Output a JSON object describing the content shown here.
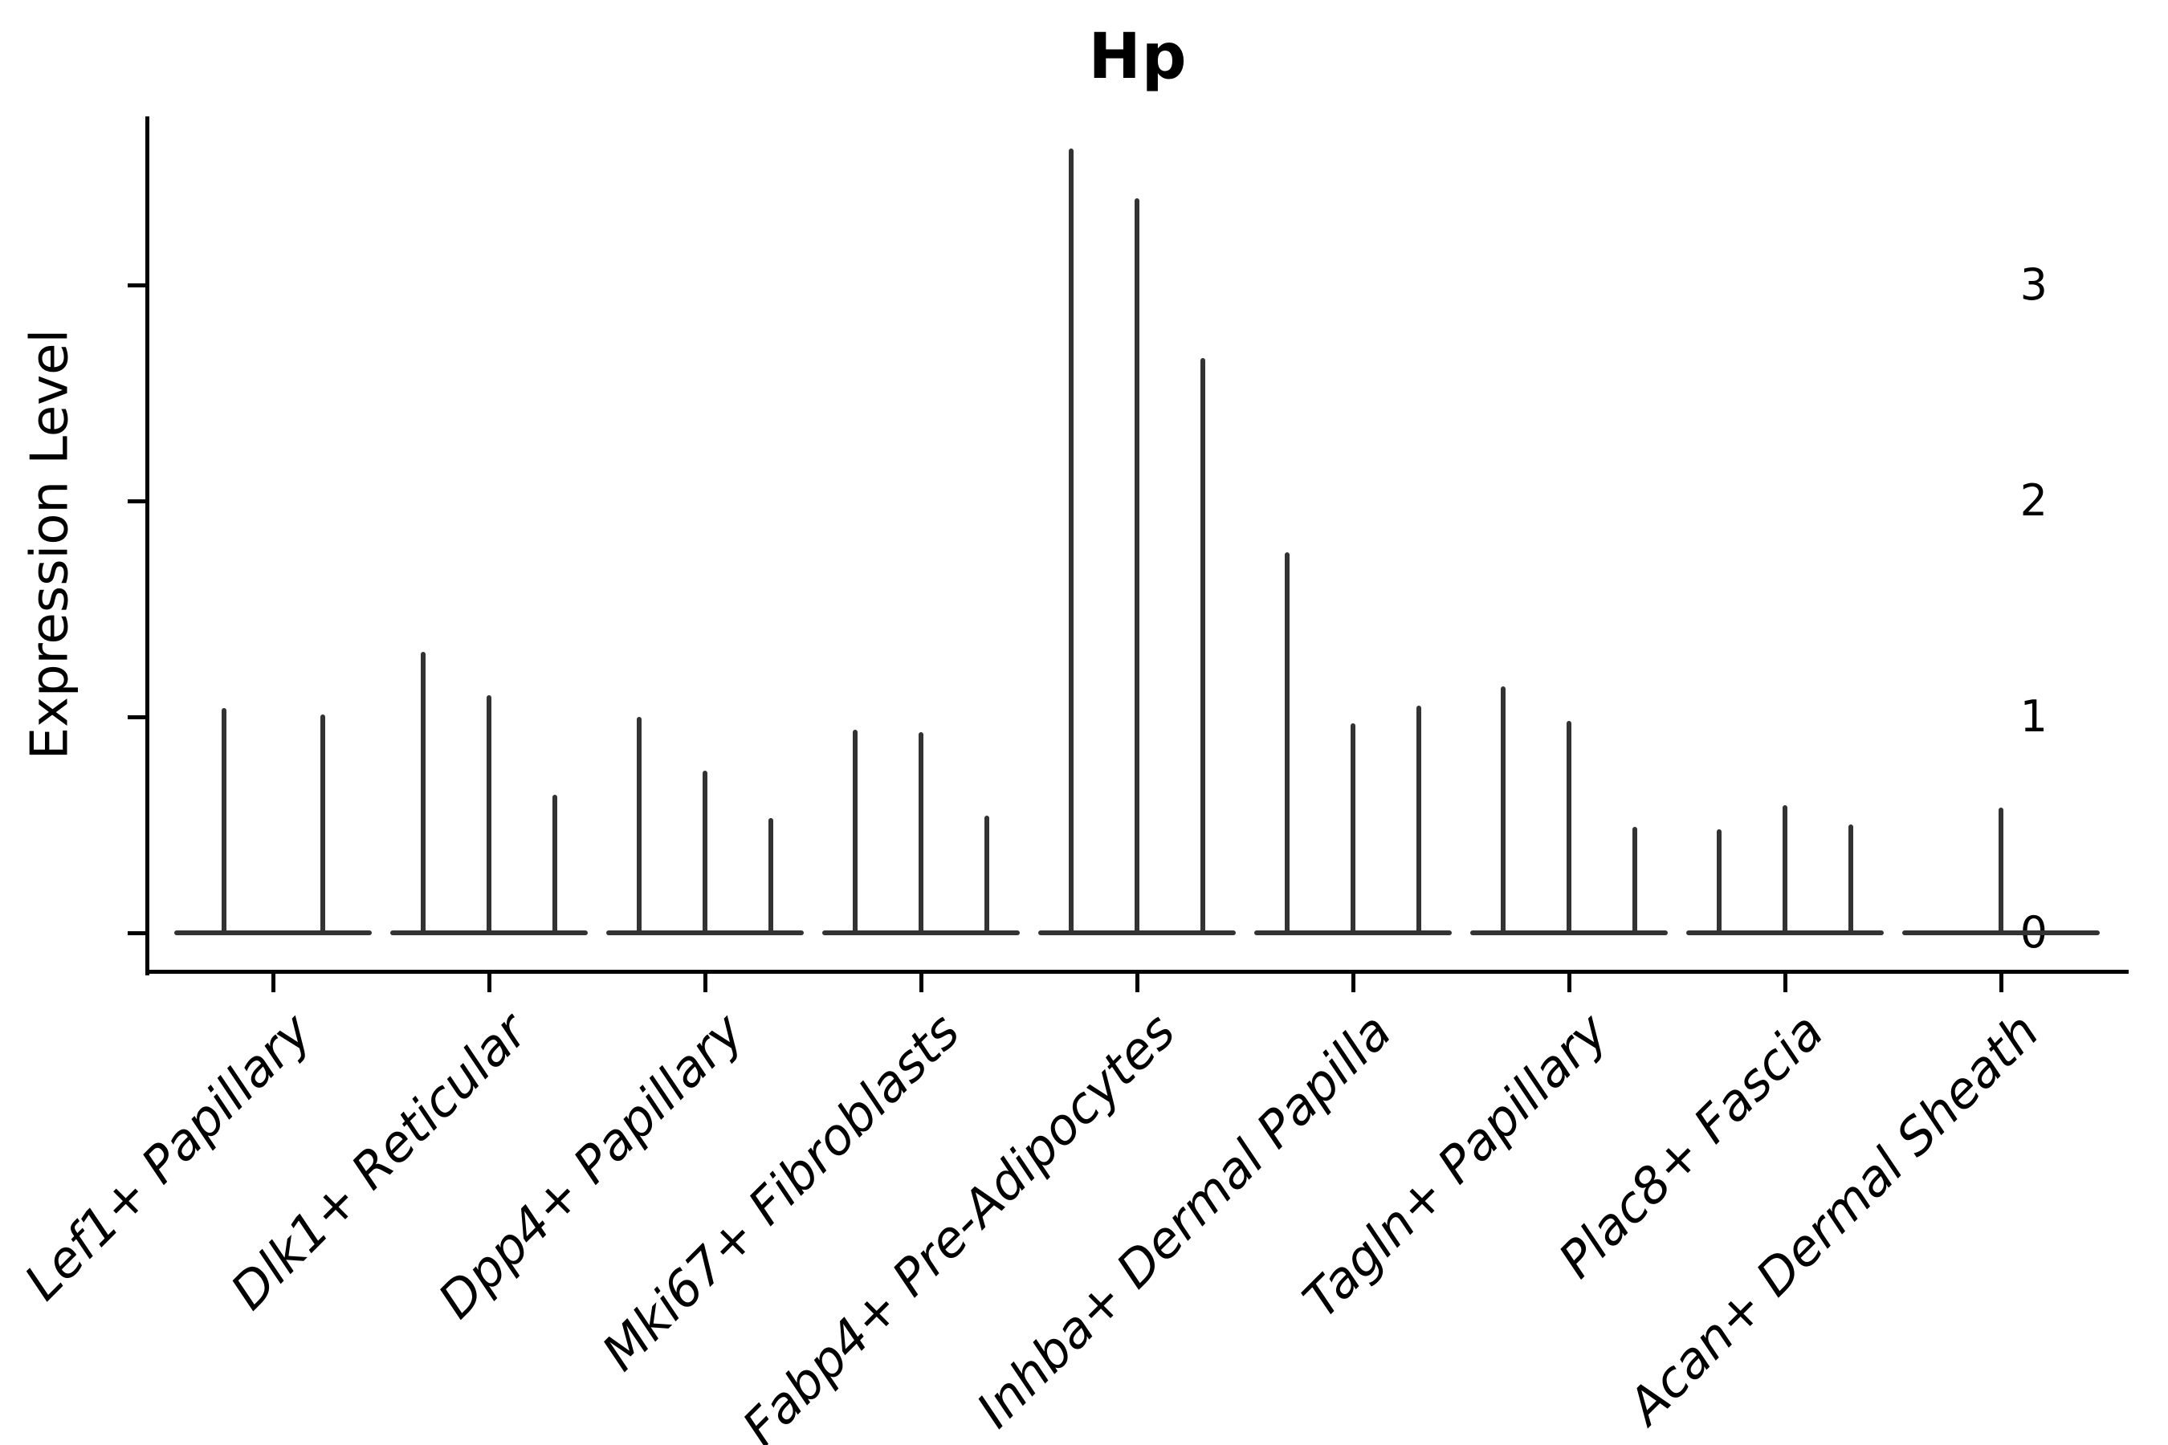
{
  "chart_data": {
    "type": "violin",
    "title": "Hp",
    "xlabel": "",
    "ylabel": "Expression Level",
    "yticks": [
      0,
      1,
      2,
      3
    ],
    "ylim": [
      -0.19,
      3.78
    ],
    "grid": false,
    "legend": "none",
    "violin_shape": "zero-inflated: wide flat base at 0 with thin vertical spike up to max expression",
    "categories": [
      "Lef1+ Papillary",
      "Dlk1+ Reticular",
      "Dpp4+ Papillary",
      "Mki67+ Fibroblasts",
      "Fabp4+ Pre-Adipocytes",
      "Inhba+ Dermal Papilla",
      "Tagln+ Papillary",
      "Plac8+ Fascia",
      "Acan+ Dermal Sheath"
    ],
    "groups": [
      {
        "category": "Lef1+ Papillary",
        "violin_max_values": [
          1.03,
          1.0
        ]
      },
      {
        "category": "Dlk1+ Reticular",
        "violin_max_values": [
          1.29,
          1.09,
          0.63
        ]
      },
      {
        "category": "Dpp4+ Papillary",
        "violin_max_values": [
          0.99,
          0.74,
          0.52
        ]
      },
      {
        "category": "Mki67+ Fibroblasts",
        "violin_max_values": [
          0.93,
          0.92,
          0.53
        ]
      },
      {
        "category": "Fabp4+ Pre-Adipocytes",
        "violin_max_values": [
          3.62,
          3.39,
          2.65
        ]
      },
      {
        "category": "Inhba+ Dermal Papilla",
        "violin_max_values": [
          1.75,
          0.96,
          1.04
        ]
      },
      {
        "category": "Tagln+ Papillary",
        "violin_max_values": [
          1.13,
          0.97,
          0.48
        ]
      },
      {
        "category": "Plac8+ Fascia",
        "violin_max_values": [
          0.47,
          0.58,
          0.49
        ]
      },
      {
        "category": "Acan+ Dermal Sheath",
        "violin_max_values": [
          0.57
        ]
      }
    ]
  },
  "colors": {
    "violin_stroke": "#333333",
    "axis": "#000000",
    "text": "#000000",
    "background": "#ffffff"
  }
}
